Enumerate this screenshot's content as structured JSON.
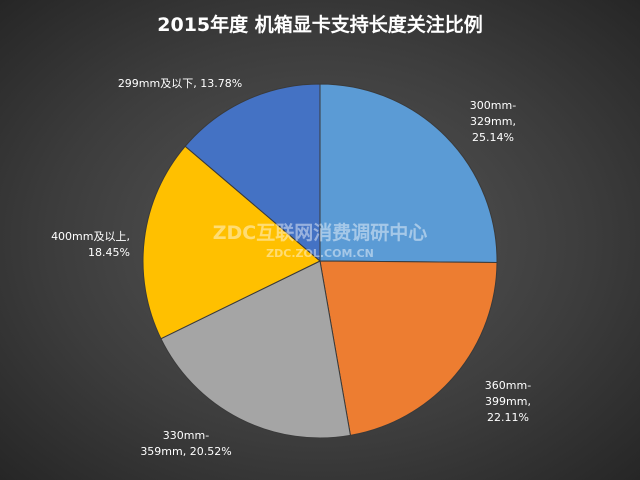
{
  "chart_data": {
    "type": "pie",
    "title": "2015年度 机箱显卡支持长度关注比例",
    "values": [
      25.14,
      22.11,
      20.52,
      18.45,
      13.78
    ],
    "value_labels": [
      "300mm-329mm, 25.14%",
      "360mm-399mm, 22.11%",
      "330mm-359mm, 20.52%",
      "400mm及以上, 18.45%",
      "299mm及以下, 13.78%"
    ],
    "colors": [
      "#5b9bd5",
      "#ed7d31",
      "#a5a5a5",
      "#ffc000",
      "#4472c4"
    ],
    "watermark": {
      "name": "ZDC互联网消费调研中心",
      "url": "ZDC.ZOL.COM.CN"
    }
  }
}
